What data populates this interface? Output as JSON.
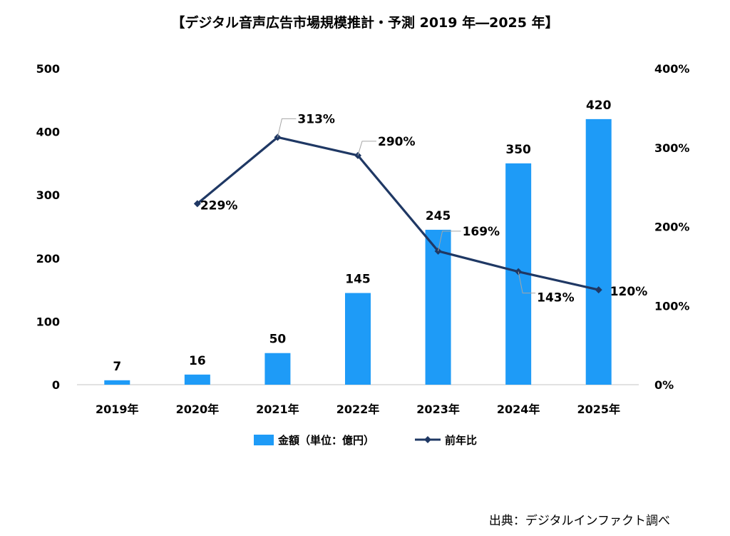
{
  "chart_data": {
    "type": "bar",
    "title": "【デジタル音声広告市場規模推計・予測 2019 年―2025 年】",
    "categories": [
      "2019年",
      "2020年",
      "2021年",
      "2022年",
      "2023年",
      "2024年",
      "2025年"
    ],
    "series": [
      {
        "name": "金額（単位：億円）",
        "type": "bar",
        "axis": "left",
        "values": [
          7,
          16,
          50,
          145,
          245,
          350,
          420
        ],
        "labels": [
          "7",
          "16",
          "50",
          "145",
          "245",
          "350",
          "420"
        ]
      },
      {
        "name": "前年比",
        "type": "line",
        "axis": "right",
        "values": [
          null,
          229,
          313,
          290,
          169,
          143,
          120
        ],
        "labels": [
          "",
          "229%",
          "313%",
          "290%",
          "169%",
          "143%",
          "120%"
        ]
      }
    ],
    "y_left": {
      "lim": [
        0,
        500
      ],
      "ticks": [
        0,
        100,
        200,
        300,
        400,
        500
      ],
      "tick_labels": [
        "0",
        "100",
        "200",
        "300",
        "400",
        "500"
      ]
    },
    "y_right": {
      "lim": [
        0,
        400
      ],
      "ticks": [
        0,
        100,
        200,
        300,
        400
      ],
      "tick_labels": [
        "0%",
        "100%",
        "200%",
        "300%",
        "400%"
      ]
    },
    "grid": false,
    "legend_position": "bottom",
    "colors": {
      "bar": "#1E9BF7",
      "line": "#1F3864",
      "axis": "#D9D9D9",
      "leader": "#A6A6A6"
    }
  },
  "source": "出典：デジタルインファクト調べ"
}
